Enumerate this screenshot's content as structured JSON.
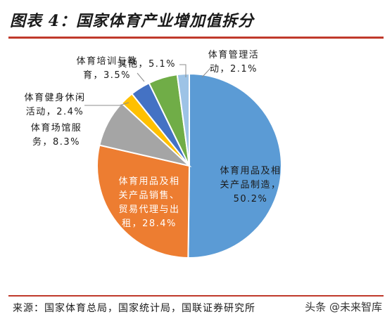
{
  "title": "图表 4：国家体育产业增加值拆分",
  "source": "来源：国家体育总局，国家统计局，国联证券研究所",
  "watermark": "头条 @未来智库",
  "chart_data": {
    "type": "pie",
    "title": "图表 4：国家体育产业增加值拆分",
    "slices": [
      {
        "label_lines": [
          "体育用品及相",
          "关产品制造，",
          "50.2%"
        ],
        "value": 50.2,
        "color": "#5b9bd5"
      },
      {
        "label_lines": [
          "体育用品及相",
          "关产品销售、",
          "贸易代理与出",
          "租，28.4%"
        ],
        "value": 28.4,
        "color": "#ed7d31"
      },
      {
        "label_lines": [
          "体育场馆服",
          "务，8.3%"
        ],
        "value": 8.3,
        "color": "#a5a5a5"
      },
      {
        "label_lines": [
          "体育健身休闲",
          "活动，2.4%"
        ],
        "value": 2.4,
        "color": "#ffc000"
      },
      {
        "label_lines": [
          "体育培训与教",
          "育，3.5%"
        ],
        "value": 3.5,
        "color": "#4472c4"
      },
      {
        "label_lines": [
          "其他，5.1%"
        ],
        "value": 5.1,
        "color": "#70ad47"
      },
      {
        "label_lines": [
          "体育管理活",
          "动，2.1%"
        ],
        "value": 2.1,
        "color": "#9dc3e6"
      }
    ]
  }
}
